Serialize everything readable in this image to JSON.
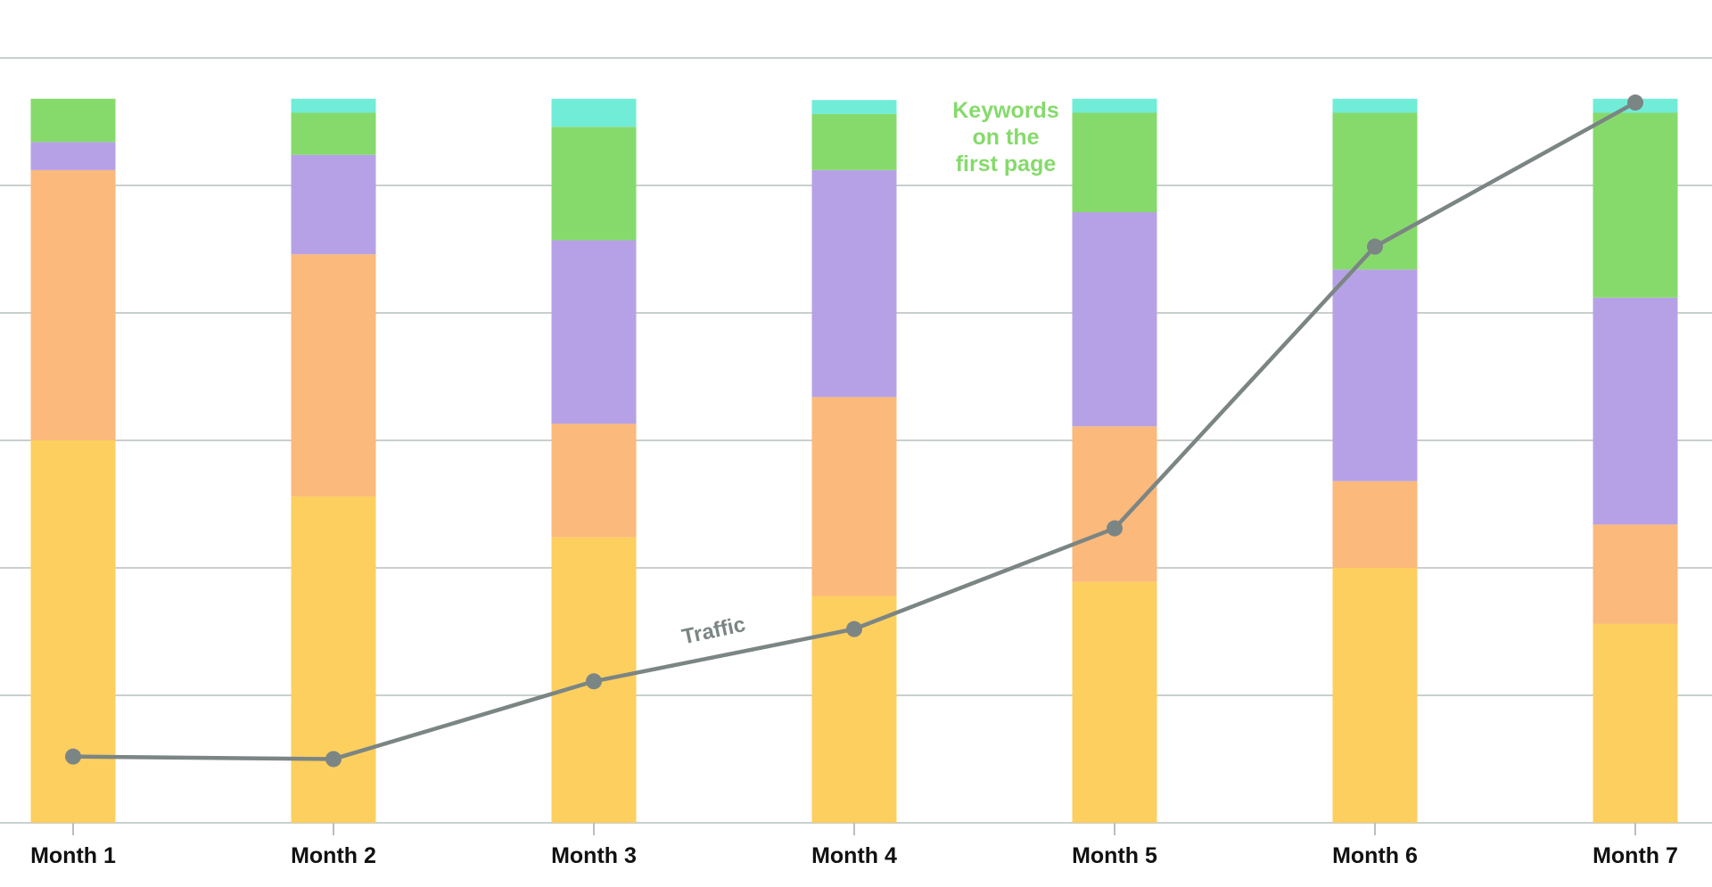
{
  "chart_data": {
    "type": "bar",
    "stacked": true,
    "categories": [
      "Month 1",
      "Month 2",
      "Month 3",
      "Month 4",
      "Month 5",
      "Month 6",
      "Month 7"
    ],
    "ylim": [
      0,
      6
    ],
    "grid": true,
    "series": [
      {
        "color": "#fdcf5f",
        "values": [
          3.0,
          2.56,
          2.24,
          1.78,
          1.89,
          2.0,
          1.56
        ]
      },
      {
        "color": "#fbb97b",
        "values": [
          2.12,
          1.9,
          0.89,
          1.56,
          1.22,
          0.68,
          0.78
        ]
      },
      {
        "color": "#b6a1e6",
        "values": [
          0.22,
          0.78,
          1.44,
          1.78,
          1.68,
          1.66,
          1.78
        ]
      },
      {
        "color": "#86da6c",
        "values": [
          0.34,
          0.33,
          0.89,
          0.44,
          0.78,
          1.23,
          1.45
        ]
      },
      {
        "color": "#71ecd7",
        "values": [
          0.0,
          0.11,
          0.22,
          0.11,
          0.11,
          0.11,
          0.11
        ]
      }
    ],
    "line": {
      "color": "#7b8584",
      "values": [
        0.52,
        0.5,
        1.11,
        1.52,
        2.31,
        4.52,
        5.65
      ]
    },
    "annotations": [
      {
        "text_lines": [
          "Keywords",
          "on the",
          "first page"
        ],
        "color": "#86da6c"
      },
      {
        "text": "Traffic",
        "color": "#7b8584"
      }
    ]
  }
}
